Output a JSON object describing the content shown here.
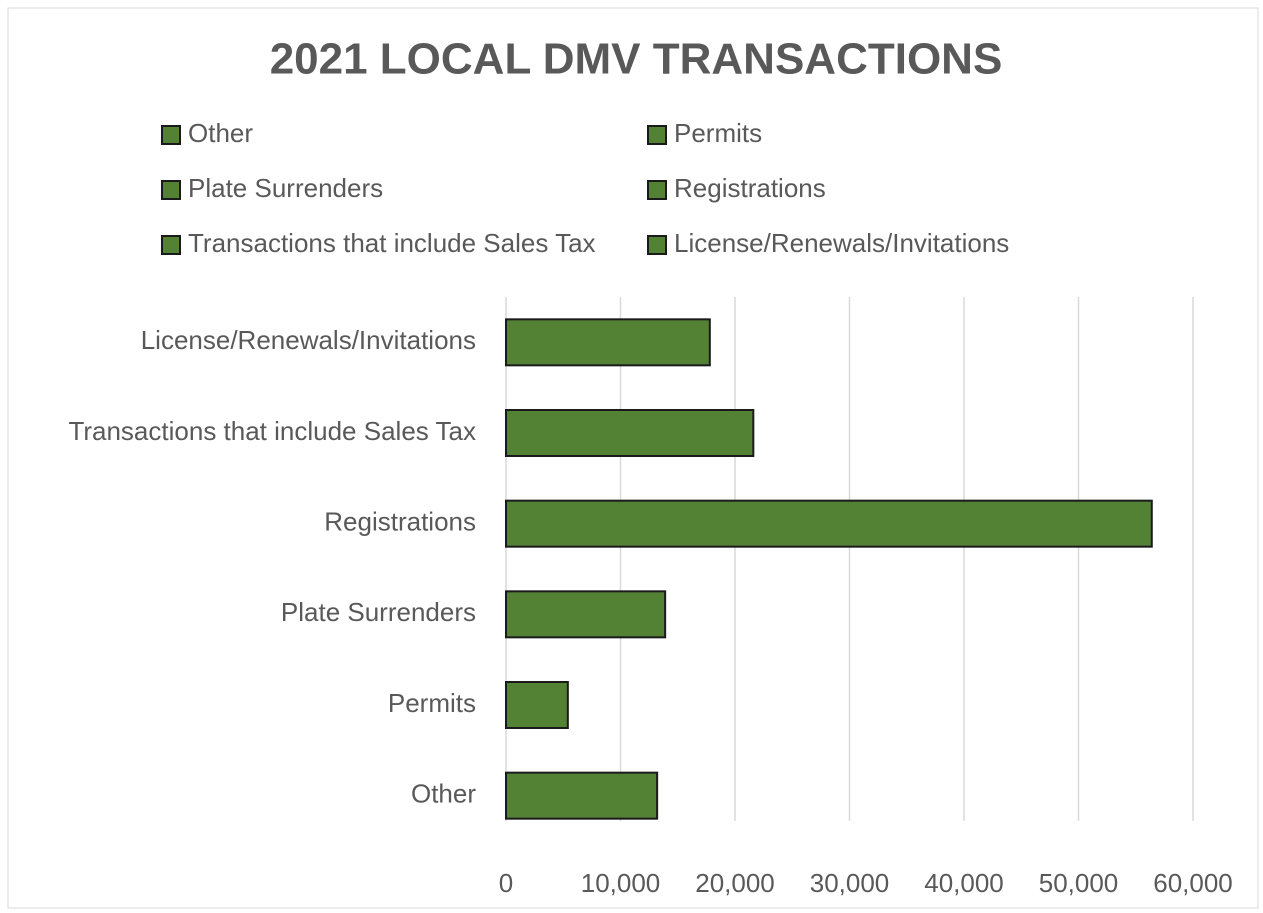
{
  "chart_data": {
    "type": "hbar",
    "title": "2021 LOCAL DMV TRANSACTIONS",
    "categories": [
      "Other",
      "Permits",
      "Plate Surrenders",
      "Registrations",
      "Transactions that include Sales Tax",
      "License/Renewals/Invitations"
    ],
    "values": [
      13200,
      5400,
      13900,
      56400,
      21600,
      17800
    ],
    "color": "#548235",
    "xlim": [
      0,
      60000
    ],
    "xticks": [
      0,
      {
        "value": 10000,
        "label": "10,000"
      },
      {
        "value": 20000,
        "label": "20,000"
      },
      {
        "value": 30000,
        "label": "30,000"
      },
      {
        "value": 40000,
        "label": "40,000"
      },
      {
        "value": 50000,
        "label": "50,000"
      },
      {
        "value": 60000,
        "label": "60,000"
      }
    ],
    "grid": true,
    "legend": "top"
  }
}
